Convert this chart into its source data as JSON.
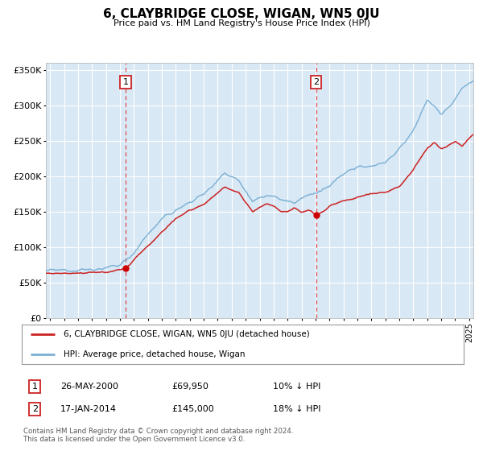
{
  "title": "6, CLAYBRIDGE CLOSE, WIGAN, WN5 0JU",
  "subtitle": "Price paid vs. HM Land Registry's House Price Index (HPI)",
  "ylim": [
    0,
    360000
  ],
  "xlim_start": 1994.7,
  "xlim_end": 2025.3,
  "plot_bg": "#d8e8f5",
  "grid_color": "#ffffff",
  "sale1_date": 2000.4,
  "sale1_price": 69950,
  "sale2_date": 2014.05,
  "sale2_price": 145000,
  "legend_line1": "6, CLAYBRIDGE CLOSE, WIGAN, WN5 0JU (detached house)",
  "legend_line2": "HPI: Average price, detached house, Wigan",
  "annotation1_date": "26-MAY-2000",
  "annotation1_price": "£69,950",
  "annotation1_pct": "10% ↓ HPI",
  "annotation2_date": "17-JAN-2014",
  "annotation2_price": "£145,000",
  "annotation2_pct": "18% ↓ HPI",
  "footnote": "Contains HM Land Registry data © Crown copyright and database right 2024.\nThis data is licensed under the Open Government Licence v3.0.",
  "line_color_red": "#cc2222",
  "line_color_blue": "#7aafd4",
  "sale_color": "#cc0000"
}
